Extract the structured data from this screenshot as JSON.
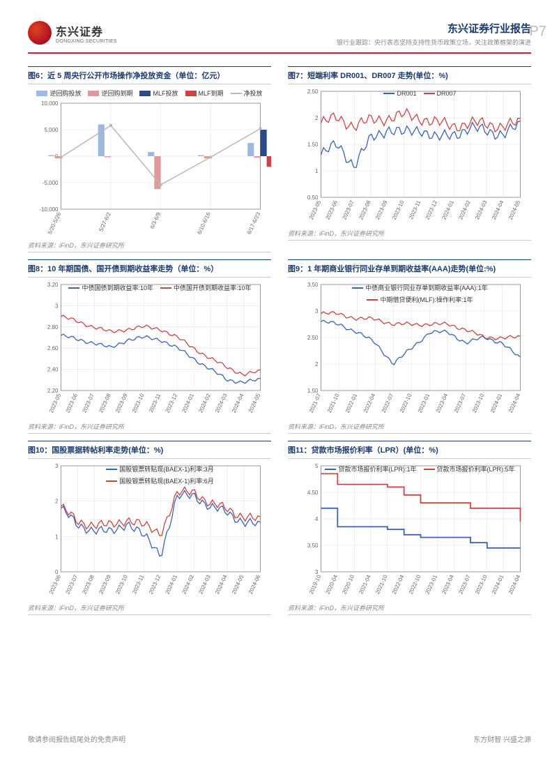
{
  "header": {
    "company_cn": "东兴证券",
    "company_en": "DONGXING SECURITIES",
    "report_title": "东兴证券行业报告",
    "subtitle": "银行业跟踪：央行表态坚持支持性货币政策立场，关注政策框架的演进",
    "page_number": "P7"
  },
  "colors": {
    "brand_red": "#c41e3a",
    "brand_blue": "#1a3a6e",
    "series_blue": "#3a62b8",
    "series_red": "#c94444",
    "series_lightblue": "#9fb8e0",
    "series_gray": "#b8b8b8",
    "series_darkblue": "#2a4a8a",
    "grid": "#ddd",
    "text_muted": "#888"
  },
  "charts": [
    {
      "id": "c6",
      "title": "图6：近 5 周央行公开市场操作净投放资金（单位：亿元）",
      "type": "bar-line",
      "legend": [
        {
          "label": "逆回购投放",
          "color": "#9fb8e0",
          "shape": "bar"
        },
        {
          "label": "逆回购到期",
          "color": "#e09999",
          "shape": "bar"
        },
        {
          "label": "MLF投放",
          "color": "#2a4a8a",
          "shape": "bar"
        },
        {
          "label": "MLF到期",
          "color": "#c94444",
          "shape": "bar"
        },
        {
          "label": "净投放",
          "color": "#b8b8b8",
          "shape": "line"
        }
      ],
      "ylim": [
        -10000,
        10000
      ],
      "yticks": [
        -10000,
        -5000,
        0,
        5000,
        10000
      ],
      "categories": [
        "5/20-5/26",
        "5/27-6/2",
        "6/3-6/9",
        "6/10-6/16",
        "6/17-6/23"
      ],
      "series": {
        "rev_repo_put": [
          200,
          6000,
          800,
          200,
          2500
        ],
        "rev_repo_exp": [
          -400,
          -200,
          -6200,
          -400,
          -300
        ],
        "mlf_put": [
          0,
          0,
          0,
          0,
          5000
        ],
        "mlf_exp": [
          0,
          0,
          0,
          0,
          -2000
        ],
        "net": [
          -200,
          5800,
          -5400,
          -200,
          5200
        ]
      },
      "source": "资料来源：iFinD，东兴证券研究所"
    },
    {
      "id": "c7",
      "title": "图7：短端利率 DR001、DR007 走势(单位：%)",
      "type": "line",
      "legend": [
        {
          "label": "DR001",
          "color": "#3a62b8",
          "shape": "line"
        },
        {
          "label": "DR007",
          "color": "#c94444",
          "shape": "line"
        }
      ],
      "ylim": [
        0.5,
        2.5
      ],
      "yticks": [
        0.5,
        1.0,
        1.5,
        2.0,
        2.5
      ],
      "xticks": [
        "2023-05",
        "2023-06",
        "2023-07",
        "2023-08",
        "2023-09",
        "2023-10",
        "2023-11",
        "2023-12",
        "2024-01",
        "2024-02",
        "2024-03",
        "2024-04",
        "2024-05"
      ],
      "series": {
        "DR001": [
          1.3,
          1.5,
          1.1,
          1.6,
          1.8,
          1.7,
          1.8,
          1.6,
          1.7,
          1.8,
          1.75,
          1.7,
          1.85
        ],
        "DR007": [
          1.9,
          2.0,
          1.85,
          1.95,
          2.0,
          2.05,
          2.0,
          1.9,
          1.85,
          1.9,
          1.88,
          1.85,
          1.9
        ]
      },
      "noise": 0.25,
      "source": "资料来源：iFinD，东兴证券研究所"
    },
    {
      "id": "c8",
      "title": "图8：10 年期国债、国开债到期收益率走势（单位：%）",
      "type": "line",
      "legend": [
        {
          "label": "中债国债到期收益率:10年",
          "color": "#3a62b8",
          "shape": "line"
        },
        {
          "label": "中债国开债到期收益率:10年",
          "color": "#c94444",
          "shape": "line"
        }
      ],
      "ylim": [
        2.2,
        3.2
      ],
      "yticks": [
        2.2,
        2.4,
        2.6,
        2.8,
        3.0,
        3.2
      ],
      "xticks": [
        "2023-05",
        "2023-06",
        "2023-07",
        "2023-08",
        "2023-09",
        "2023-10",
        "2023-11",
        "2023-12",
        "2024-01",
        "2024-02",
        "2024-03",
        "2024-04",
        "2024-05"
      ],
      "series": {
        "gb10": [
          2.72,
          2.68,
          2.65,
          2.6,
          2.68,
          2.7,
          2.68,
          2.6,
          2.5,
          2.4,
          2.3,
          2.28,
          2.3
        ],
        "cdb10": [
          2.9,
          2.85,
          2.8,
          2.75,
          2.78,
          2.8,
          2.78,
          2.7,
          2.6,
          2.5,
          2.42,
          2.35,
          2.38
        ]
      },
      "noise": 0.04,
      "source": "资料来源：iFinD，东兴证券研究所"
    },
    {
      "id": "c9",
      "title": "图9：1 年期商业银行同业存单到期收益率(AAA)走势(单位:%)",
      "type": "line",
      "legend": [
        {
          "label": "中债商业银行同业存单到期收益率(AAA):1年",
          "color": "#3a62b8",
          "shape": "line"
        },
        {
          "label": "中期借贷便利(MLF):操作利率:1年",
          "color": "#c94444",
          "shape": "line"
        }
      ],
      "ylim": [
        1.5,
        3.5
      ],
      "yticks": [
        1.5,
        2.0,
        2.5,
        3.0,
        3.5
      ],
      "xticks": [
        "2021-07",
        "2021-10",
        "2022-01",
        "2022-04",
        "2022-07",
        "2022-10",
        "2023-01",
        "2023-04",
        "2023-07",
        "2023-10",
        "2024-01",
        "2024-04"
      ],
      "series": {
        "ncd": [
          2.8,
          2.75,
          2.6,
          2.4,
          2.0,
          2.3,
          2.6,
          2.6,
          2.4,
          2.5,
          2.4,
          2.1
        ],
        "mlf": [
          2.95,
          2.95,
          2.85,
          2.85,
          2.75,
          2.75,
          2.75,
          2.75,
          2.65,
          2.5,
          2.5,
          2.5
        ]
      },
      "noise": 0.08,
      "source": "资料来源：iFinD，东兴证券研究所"
    },
    {
      "id": "c10",
      "title": "图10：国股票据转帖利率走势(单位：%)",
      "type": "line",
      "legend": [
        {
          "label": "国股银票转贴现(BAEX-1)利率:3月",
          "color": "#3a62b8",
          "shape": "line"
        },
        {
          "label": "国股银票转贴现(BAEX-1)利率:6月",
          "color": "#c94444",
          "shape": "line"
        }
      ],
      "ylim": [
        0,
        3
      ],
      "yticks": [
        0.0,
        1.0,
        2.0,
        3.0
      ],
      "xticks": [
        "2023-06",
        "2023-07",
        "2023-08",
        "2023-09",
        "2023-10",
        "2023-11",
        "2023-12",
        "2024-01",
        "2024-02",
        "2024-03",
        "2024-04",
        "2024-05",
        "2024-06"
      ],
      "series": {
        "m3": [
          1.8,
          1.3,
          1.2,
          1.1,
          1.4,
          1.0,
          0.5,
          2.1,
          2.2,
          1.8,
          1.7,
          1.4,
          1.3
        ],
        "m6": [
          1.85,
          1.4,
          1.35,
          1.3,
          1.5,
          1.3,
          1.1,
          2.2,
          2.3,
          1.9,
          1.8,
          1.55,
          1.45
        ]
      },
      "noise": 0.3,
      "source": "资料来源：iFinD，东兴证券研究所"
    },
    {
      "id": "c11",
      "title": "图11：贷款市场报价利率（LPR）(单位：%)",
      "type": "step",
      "legend": [
        {
          "label": "贷款市场报价利率(LPR):1年",
          "color": "#3a62b8",
          "shape": "line"
        },
        {
          "label": "贷款市场报价利率(LPR):5年",
          "color": "#c94444",
          "shape": "line"
        }
      ],
      "ylim": [
        3,
        5
      ],
      "yticks": [
        3.0,
        3.5,
        4.0,
        4.5,
        5.0
      ],
      "xticks": [
        "2019-10",
        "2020-04",
        "2020-10",
        "2021-04",
        "2021-10",
        "2022-04",
        "2022-10",
        "2023-01",
        "2023-04",
        "2023-07",
        "2023-10",
        "2024-01",
        "2024-04"
      ],
      "series": {
        "lpr1": [
          4.2,
          3.85,
          3.85,
          3.85,
          3.8,
          3.7,
          3.65,
          3.65,
          3.65,
          3.55,
          3.45,
          3.45,
          3.45
        ],
        "lpr5": [
          4.85,
          4.65,
          4.65,
          4.65,
          4.6,
          4.45,
          4.3,
          4.3,
          4.3,
          4.2,
          4.2,
          4.2,
          3.95
        ]
      },
      "source": "资料来源：iFinD，东兴证券研究所"
    }
  ],
  "footer": {
    "left": "敬请参阅报告结尾处的免责声明",
    "right": "东方财智  兴盛之源"
  }
}
